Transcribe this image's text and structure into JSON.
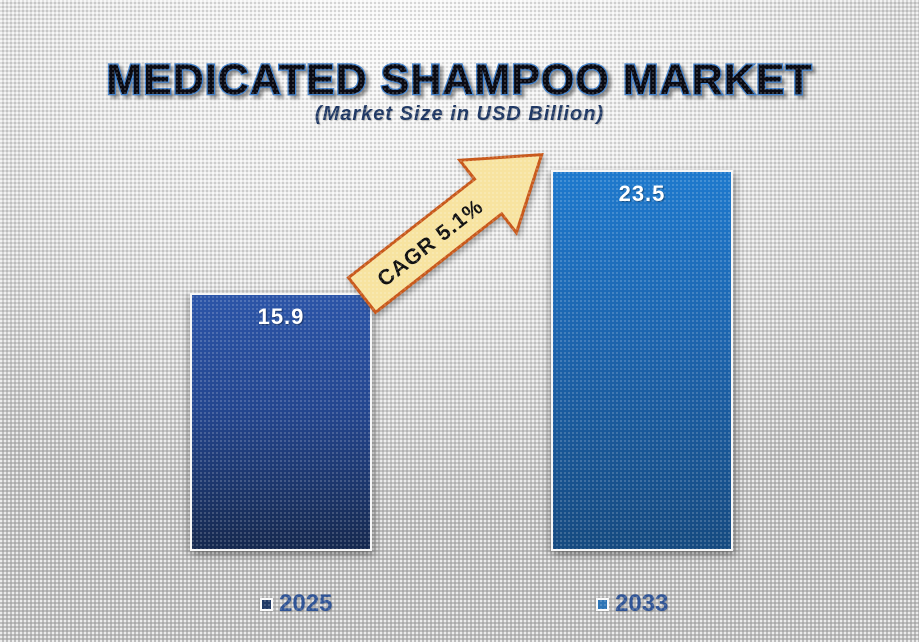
{
  "chart_data": {
    "type": "bar",
    "title": "MEDICATED SHAMPOO MARKET",
    "subtitle": "(Market Size in USD Billion)",
    "unit": "USD Billion",
    "categories": [
      "2025",
      "2033"
    ],
    "values": [
      15.9,
      23.5
    ],
    "annotation": "CAGR 5.1%",
    "ylim": [
      0,
      23.5
    ],
    "grid": false,
    "axes_shown": false,
    "legend": {
      "position": "bottom",
      "entries": [
        "2025",
        "2033"
      ]
    },
    "colors": {
      "title_fill": "#0a0a12",
      "title_outline": "#3c7ecb",
      "subtitle_text": "#1f3864",
      "bar_2025_top": "#2c55a8",
      "bar_2025_mid": "#24468f",
      "bar_2025_bottom": "#16294f",
      "bar_2033_top": "#1e79cd",
      "bar_2033_mid": "#1d64ad",
      "bar_2033_bottom": "#164a80",
      "value_label_text": "#ffffff",
      "arrow_fill": "#f7e3a0",
      "arrow_stroke": "#c8591b",
      "arrow_text": "#111111",
      "legend_swatch_2025": "#1f3864",
      "legend_swatch_2033": "#2e75b6",
      "legend_text": "#2e5395"
    }
  }
}
